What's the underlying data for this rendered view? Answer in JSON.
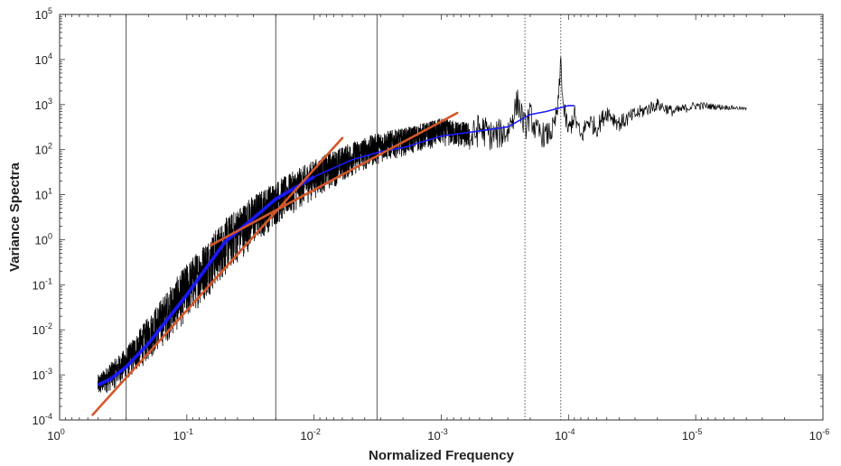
{
  "chart_data": {
    "type": "line",
    "title": "",
    "xlabel": "Normalized Frequency",
    "ylabel": "Variance Spectra",
    "x_scale": "log",
    "y_scale": "log",
    "x_reversed": true,
    "xlim": [
      1,
      1e-06
    ],
    "ylim": [
      0.0001,
      100000
    ],
    "x_ticks": [
      {
        "value": 1,
        "label_base": "10",
        "label_exp": "0"
      },
      {
        "value": 0.1,
        "label_base": "10",
        "label_exp": "-1"
      },
      {
        "value": 0.01,
        "label_base": "10",
        "label_exp": "-2"
      },
      {
        "value": 0.001,
        "label_base": "10",
        "label_exp": "-3"
      },
      {
        "value": 0.0001,
        "label_base": "10",
        "label_exp": "-4"
      },
      {
        "value": 1e-05,
        "label_base": "10",
        "label_exp": "-5"
      },
      {
        "value": 1e-06,
        "label_base": "10",
        "label_exp": "-6"
      }
    ],
    "y_ticks": [
      {
        "value": 0.0001,
        "label_base": "10",
        "label_exp": "-4"
      },
      {
        "value": 0.001,
        "label_base": "10",
        "label_exp": "-3"
      },
      {
        "value": 0.01,
        "label_base": "10",
        "label_exp": "-2"
      },
      {
        "value": 0.1,
        "label_base": "10",
        "label_exp": "-1"
      },
      {
        "value": 1,
        "label_base": "10",
        "label_exp": "0"
      },
      {
        "value": 10,
        "label_base": "10",
        "label_exp": "1"
      },
      {
        "value": 100,
        "label_base": "10",
        "label_exp": "2"
      },
      {
        "value": 1000,
        "label_base": "10",
        "label_exp": "3"
      },
      {
        "value": 10000,
        "label_base": "10",
        "label_exp": "4"
      },
      {
        "value": 100000,
        "label_base": "10",
        "label_exp": "5"
      }
    ],
    "grid": false,
    "colors": {
      "raw": "#000000",
      "smoothed": "#1a1aff",
      "fit": "#d4572a",
      "axis": "#333333"
    },
    "series": [
      {
        "role": "raw_spectrum_noisy_band",
        "style": "black noisy band",
        "x": [
          0.5,
          0.3,
          0.2,
          0.1,
          0.05,
          0.03,
          0.02,
          0.01,
          0.005,
          0.003,
          0.002,
          0.001,
          0.0006
        ],
        "y_low": [
          0.0003,
          0.0007,
          0.002,
          0.015,
          0.15,
          0.7,
          2,
          8,
          25,
          50,
          70,
          120,
          100
        ],
        "y_high": [
          0.001,
          0.004,
          0.02,
          0.3,
          3,
          10,
          20,
          60,
          150,
          250,
          300,
          500,
          400
        ]
      },
      {
        "role": "raw_spectrum_low_frequency",
        "style": "black thin line",
        "x": [
          0.0006,
          0.0005,
          0.0004,
          0.0003,
          0.00025,
          0.00022,
          0.0002,
          0.00018,
          0.00015,
          0.00013,
          0.00012,
          0.000115,
          0.00011,
          0.0001,
          9e-05,
          8e-05,
          7e-05,
          6e-05,
          5e-05,
          4e-05,
          3e-05,
          2e-05,
          1.5e-05,
          1e-05,
          7e-06,
          5e-06,
          4e-06
        ],
        "y": [
          150,
          300,
          200,
          250,
          1200,
          300,
          600,
          250,
          200,
          300,
          1000,
          10000,
          900,
          250,
          600,
          180,
          450,
          300,
          700,
          380,
          600,
          1000,
          700,
          950,
          900,
          850,
          800
        ]
      },
      {
        "name": "",
        "role": "smoothed_spectrum",
        "style": "blue line",
        "x": [
          0.5,
          0.4,
          0.3,
          0.2,
          0.1,
          0.05,
          0.03,
          0.02,
          0.01,
          0.005,
          0.003,
          0.002,
          0.001,
          0.0005,
          0.0003,
          0.0002,
          0.00015,
          0.0001,
          9e-05
        ],
        "y": [
          0.0006,
          0.0008,
          0.0015,
          0.005,
          0.06,
          0.9,
          3,
          8,
          25,
          60,
          90,
          110,
          200,
          260,
          320,
          600,
          700,
          950,
          950
        ]
      }
    ],
    "fit_lines": [
      {
        "role": "steep_fit",
        "x1": 0.55,
        "y1": 0.00013,
        "x2": 0.006,
        "y2": 180
      },
      {
        "role": "shallow_fit",
        "x1": 0.065,
        "y1": 0.75,
        "x2": 0.00075,
        "y2": 650
      }
    ],
    "vertical_lines": [
      {
        "x": 0.3,
        "style": "solid"
      },
      {
        "x": 0.02,
        "style": "solid"
      },
      {
        "x": 0.0032,
        "style": "solid"
      },
      {
        "x": 0.00022,
        "style": "dotted"
      },
      {
        "x": 0.000115,
        "style": "dotted"
      }
    ]
  }
}
